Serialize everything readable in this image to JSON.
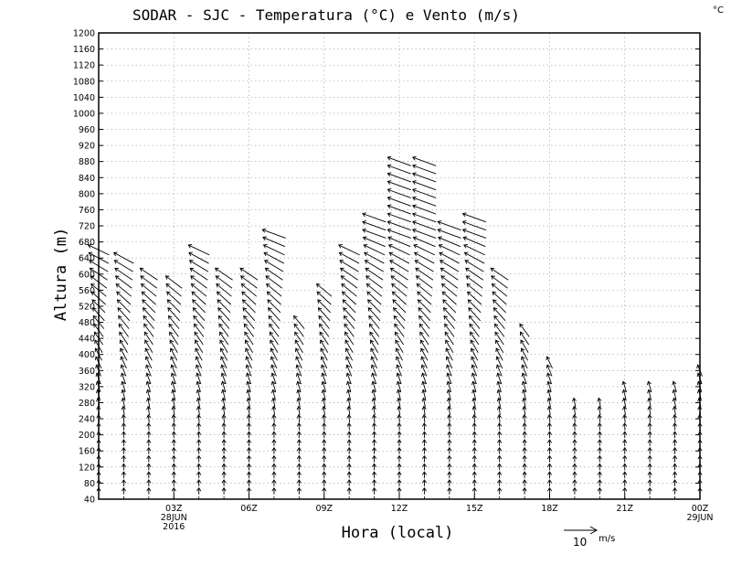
{
  "chart_data": {
    "type": "wind-barb-profile",
    "title": "SODAR - SJC - Temperatura (°C) e Vento (m/s)",
    "unit_corner": "°C",
    "xlabel": "Hora (local)",
    "ylabel": "Altura (m)",
    "ylim": [
      40,
      1200
    ],
    "y_ticks": [
      40,
      80,
      120,
      160,
      200,
      240,
      280,
      320,
      360,
      400,
      440,
      480,
      520,
      560,
      600,
      640,
      680,
      720,
      760,
      800,
      840,
      880,
      920,
      960,
      1000,
      1040,
      1080,
      1120,
      1160,
      1200
    ],
    "xlim_hours": [
      0,
      24
    ],
    "x_ticks": [
      {
        "hour": 3,
        "label": "03Z",
        "sub1": "28JUN",
        "sub2": "2016"
      },
      {
        "hour": 6,
        "label": "06Z",
        "sub1": "",
        "sub2": ""
      },
      {
        "hour": 9,
        "label": "09Z",
        "sub1": "",
        "sub2": ""
      },
      {
        "hour": 12,
        "label": "12Z",
        "sub1": "",
        "sub2": ""
      },
      {
        "hour": 15,
        "label": "15Z",
        "sub1": "",
        "sub2": ""
      },
      {
        "hour": 18,
        "label": "18Z",
        "sub1": "",
        "sub2": ""
      },
      {
        "hour": 21,
        "label": "21Z",
        "sub1": "",
        "sub2": ""
      },
      {
        "hour": 24,
        "label": "00Z",
        "sub1": "29JUN",
        "sub2": ""
      }
    ],
    "grid": true,
    "reference_vector": {
      "speed": 10,
      "unit": "m/s",
      "label": "10"
    },
    "profiles_max_height_m": [
      {
        "hour": 0,
        "top": 660
      },
      {
        "hour": 1,
        "top": 640
      },
      {
        "hour": 2,
        "top": 600
      },
      {
        "hour": 3,
        "top": 580
      },
      {
        "hour": 4,
        "top": 660
      },
      {
        "hour": 5,
        "top": 600
      },
      {
        "hour": 6,
        "top": 600
      },
      {
        "hour": 7,
        "top": 700
      },
      {
        "hour": 8,
        "top": 480
      },
      {
        "hour": 9,
        "top": 560
      },
      {
        "hour": 10,
        "top": 660
      },
      {
        "hour": 11,
        "top": 740
      },
      {
        "hour": 12,
        "top": 880
      },
      {
        "hour": 13,
        "top": 880
      },
      {
        "hour": 14,
        "top": 720
      },
      {
        "hour": 15,
        "top": 740
      },
      {
        "hour": 16,
        "top": 600
      },
      {
        "hour": 17,
        "top": 460
      },
      {
        "hour": 18,
        "top": 380
      },
      {
        "hour": 19,
        "top": 280
      },
      {
        "hour": 20,
        "top": 280
      },
      {
        "hour": 21,
        "top": 320
      },
      {
        "hour": 22,
        "top": 320
      },
      {
        "hour": 23,
        "top": 320
      },
      {
        "hour": 24,
        "top": 360
      }
    ]
  }
}
